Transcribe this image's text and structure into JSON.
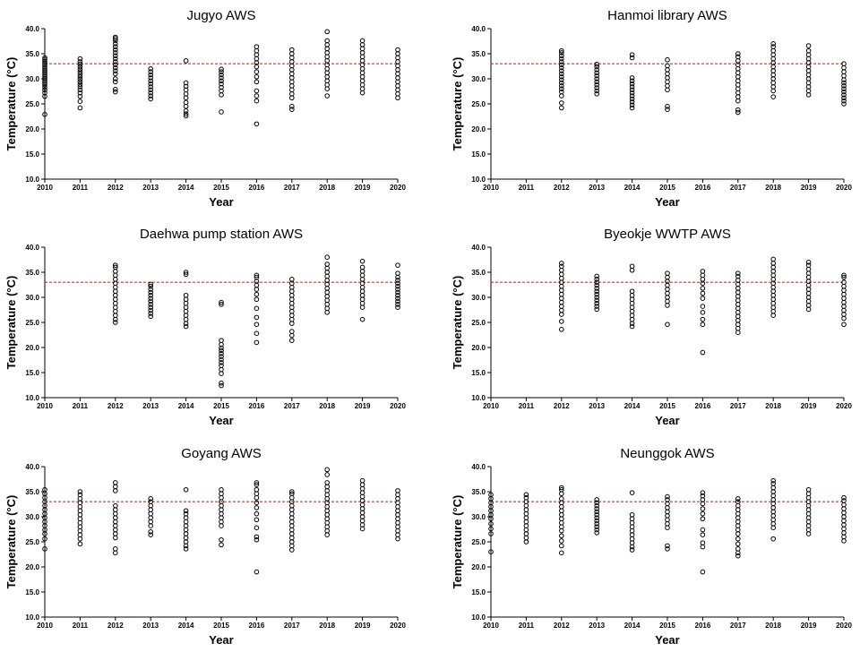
{
  "figure": {
    "threshold": 33,
    "threshold_color": "#c0392b",
    "marker_color": "#000000"
  },
  "chart_data": [
    {
      "type": "scatter",
      "title": "Jugyo AWS",
      "xlabel": "Year",
      "ylabel": "Temperature (°C)",
      "x_ticks": [
        "2010",
        "2011",
        "2012",
        "2013",
        "2014",
        "2015",
        "2016",
        "2017",
        "2018",
        "2019",
        "2020"
      ],
      "y_ticks": [
        "10.0",
        "15.0",
        "20.0",
        "25.0",
        "30.0",
        "35.0",
        "40.0"
      ],
      "xlim": [
        2010,
        2020
      ],
      "ylim": [
        10,
        40
      ],
      "reference_line": 33,
      "points": {
        "2010": [
          22.9,
          26.5,
          27.2,
          27.8,
          28.3,
          28.8,
          29.2,
          29.6,
          30.0,
          30.4,
          30.8,
          31.2,
          31.6,
          32.0,
          32.4,
          32.8,
          33.1,
          33.5,
          33.9,
          34.2
        ],
        "2011": [
          24.2,
          25.5,
          26.5,
          27.2,
          27.8,
          28.4,
          28.9,
          29.4,
          29.9,
          30.4,
          30.9,
          31.4,
          31.9,
          32.4,
          32.9,
          33.4,
          34.0
        ],
        "2012": [
          27.4,
          27.9,
          29.4,
          30.0,
          31.0,
          31.6,
          32.2,
          32.8,
          33.4,
          34.0,
          34.6,
          35.2,
          35.8,
          36.4,
          37.0,
          37.6,
          38.0,
          38.3
        ],
        "2013": [
          26.0,
          26.6,
          27.2,
          27.8,
          28.4,
          29.0,
          29.6,
          30.2,
          30.8,
          31.4,
          32.0
        ],
        "2014": [
          22.6,
          23.0,
          23.6,
          24.5,
          25.3,
          26.2,
          27.0,
          27.8,
          28.5,
          29.2,
          33.6
        ],
        "2015": [
          23.4,
          26.8,
          27.6,
          28.3,
          29.0,
          29.6,
          30.2,
          30.8,
          31.4,
          31.9
        ],
        "2016": [
          21.0,
          25.6,
          26.6,
          27.6,
          29.4,
          30.4,
          31.4,
          32.4,
          33.2,
          34.0,
          34.8,
          35.6,
          36.4
        ],
        "2017": [
          23.9,
          24.5,
          26.2,
          27.0,
          27.8,
          28.6,
          29.4,
          30.2,
          31.0,
          31.8,
          32.6,
          33.4,
          34.2,
          35.0,
          35.8
        ],
        "2018": [
          26.6,
          28.0,
          28.8,
          29.6,
          30.4,
          31.2,
          32.0,
          32.8,
          33.6,
          34.4,
          35.2,
          36.0,
          36.8,
          37.6,
          39.4
        ],
        "2019": [
          27.2,
          28.0,
          28.8,
          29.6,
          30.4,
          31.2,
          32.0,
          32.8,
          33.6,
          34.4,
          35.2,
          36.0,
          36.8,
          37.6
        ],
        "2020": [
          26.2,
          27.0,
          27.8,
          28.6,
          29.4,
          30.2,
          31.0,
          31.8,
          32.6,
          33.4,
          34.2,
          35.0,
          35.8
        ]
      }
    },
    {
      "type": "scatter",
      "title": "Hanmoi library AWS",
      "xlabel": "Year",
      "ylabel": "Temperature (°C)",
      "x_ticks": [
        "2010",
        "2011",
        "2012",
        "2013",
        "2014",
        "2015",
        "2016",
        "2017",
        "2018",
        "2019",
        "2020"
      ],
      "y_ticks": [
        "10.0",
        "15.0",
        "20.0",
        "25.0",
        "30.0",
        "35.0",
        "40.0"
      ],
      "xlim": [
        2010,
        2020
      ],
      "ylim": [
        10,
        40
      ],
      "reference_line": 33,
      "points": {
        "2012": [
          24.2,
          25.2,
          26.6,
          27.4,
          28.0,
          28.6,
          29.2,
          29.8,
          30.4,
          31.0,
          31.6,
          32.2,
          32.8,
          33.4,
          34.0,
          34.6,
          35.2,
          35.6
        ],
        "2013": [
          27.0,
          27.6,
          28.2,
          28.8,
          29.4,
          30.0,
          30.6,
          31.2,
          31.8,
          32.4,
          32.9
        ],
        "2014": [
          24.2,
          24.8,
          25.4,
          26.0,
          26.6,
          27.2,
          27.8,
          28.4,
          29.0,
          29.6,
          30.2,
          34.2,
          34.8
        ],
        "2015": [
          23.9,
          24.5,
          27.8,
          28.6,
          29.4,
          30.2,
          31.0,
          31.8,
          32.6,
          33.8
        ],
        "2017": [
          23.3,
          23.8,
          25.6,
          26.4,
          27.2,
          28.0,
          28.8,
          29.6,
          30.4,
          31.2,
          32.0,
          32.8,
          33.6,
          34.4,
          35.0
        ],
        "2018": [
          26.4,
          27.6,
          28.4,
          29.2,
          30.0,
          30.8,
          31.6,
          32.4,
          33.2,
          34.0,
          34.8,
          35.6,
          36.4,
          37.0
        ],
        "2019": [
          26.8,
          27.6,
          28.4,
          29.2,
          30.0,
          30.8,
          31.6,
          32.4,
          33.2,
          34.0,
          34.8,
          35.6,
          36.6
        ],
        "2020": [
          25.0,
          25.6,
          26.2,
          26.8,
          27.4,
          28.0,
          28.6,
          29.2,
          29.8,
          30.6,
          31.4,
          32.2,
          33.0
        ]
      }
    },
    {
      "type": "scatter",
      "title": "Daehwa pump station AWS",
      "xlabel": "Year",
      "ylabel": "Temperature (°C)",
      "x_ticks": [
        "2010",
        "2011",
        "2012",
        "2013",
        "2014",
        "2015",
        "2016",
        "2017",
        "2018",
        "2019",
        "2020"
      ],
      "y_ticks": [
        "10.0",
        "15.0",
        "20.0",
        "25.0",
        "30.0",
        "35.0",
        "40.0"
      ],
      "xlim": [
        2010,
        2020
      ],
      "ylim": [
        10,
        40
      ],
      "reference_line": 33,
      "points": {
        "2012": [
          25.0,
          25.6,
          26.4,
          27.2,
          28.0,
          28.8,
          29.6,
          30.4,
          31.2,
          32.0,
          32.8,
          33.6,
          34.4,
          35.2,
          36.0,
          36.4
        ],
        "2013": [
          26.2,
          26.8,
          27.4,
          28.0,
          28.6,
          29.2,
          29.8,
          30.4,
          31.0,
          31.6,
          32.2,
          32.6
        ],
        "2014": [
          24.2,
          24.8,
          25.6,
          26.4,
          27.2,
          28.0,
          28.8,
          29.6,
          30.4,
          34.6,
          35.0
        ],
        "2015": [
          12.4,
          12.9,
          14.8,
          15.6,
          16.4,
          17.0,
          17.6,
          18.2,
          18.8,
          19.4,
          19.9,
          20.6,
          21.4,
          28.6,
          29.0
        ],
        "2016": [
          21.0,
          22.8,
          24.6,
          26.0,
          27.8,
          29.6,
          30.6,
          31.6,
          32.4,
          33.2,
          34.0,
          34.4
        ],
        "2017": [
          21.4,
          22.4,
          23.2,
          24.8,
          25.6,
          26.4,
          27.2,
          28.0,
          28.8,
          29.6,
          30.4,
          31.2,
          32.0,
          32.8,
          33.6
        ],
        "2018": [
          27.0,
          27.8,
          28.6,
          29.4,
          30.2,
          31.0,
          31.8,
          32.6,
          33.4,
          34.2,
          35.0,
          35.8,
          36.6,
          38.0
        ],
        "2019": [
          25.6,
          28.0,
          28.8,
          29.6,
          30.4,
          31.2,
          32.0,
          32.8,
          33.6,
          34.4,
          35.2,
          36.0,
          37.2
        ],
        "2020": [
          28.0,
          28.6,
          29.2,
          29.8,
          30.4,
          31.0,
          31.6,
          32.2,
          32.8,
          33.4,
          34.0,
          34.8,
          36.4
        ]
      }
    },
    {
      "type": "scatter",
      "title": "Byeokje WWTP AWS",
      "xlabel": "Year",
      "ylabel": "Temperature (°C)",
      "x_ticks": [
        "2010",
        "2011",
        "2012",
        "2013",
        "2014",
        "2015",
        "2016",
        "2017",
        "2018",
        "2019",
        "2020"
      ],
      "y_ticks": [
        "10.0",
        "15.0",
        "20.0",
        "25.0",
        "30.0",
        "35.0",
        "40.0"
      ],
      "xlim": [
        2010,
        2020
      ],
      "ylim": [
        10,
        40
      ],
      "reference_line": 33,
      "points": {
        "2012": [
          23.6,
          25.2,
          26.6,
          27.4,
          28.2,
          29.0,
          29.8,
          30.6,
          31.4,
          32.2,
          33.0,
          33.8,
          34.6,
          35.4,
          36.2,
          36.8
        ],
        "2013": [
          27.6,
          28.2,
          28.8,
          29.4,
          30.0,
          30.6,
          31.2,
          31.8,
          32.4,
          33.0,
          33.6,
          34.2
        ],
        "2014": [
          24.2,
          24.8,
          25.6,
          26.4,
          27.2,
          28.0,
          28.8,
          29.6,
          30.4,
          31.2,
          35.4,
          36.2
        ],
        "2015": [
          24.6,
          28.4,
          29.2,
          30.0,
          30.8,
          31.6,
          32.4,
          33.2,
          34.0,
          34.8
        ],
        "2016": [
          19.0,
          24.6,
          25.6,
          27.0,
          28.2,
          29.8,
          30.8,
          31.8,
          32.8,
          33.6,
          34.4,
          35.2
        ],
        "2017": [
          23.0,
          23.8,
          24.6,
          25.4,
          26.2,
          27.0,
          27.8,
          28.6,
          29.4,
          30.2,
          31.0,
          31.8,
          32.6,
          33.4,
          34.2,
          34.8
        ],
        "2018": [
          26.4,
          27.2,
          28.0,
          28.8,
          29.6,
          30.4,
          31.2,
          32.0,
          32.8,
          33.6,
          34.4,
          35.2,
          36.0,
          36.8,
          37.6
        ],
        "2019": [
          27.6,
          28.4,
          29.2,
          30.0,
          30.8,
          31.6,
          32.4,
          33.2,
          34.0,
          34.8,
          35.6,
          36.4,
          37.0
        ],
        "2020": [
          24.6,
          25.8,
          26.6,
          27.4,
          28.2,
          29.0,
          29.8,
          30.6,
          31.4,
          32.2,
          33.0,
          34.0,
          34.4
        ]
      }
    },
    {
      "type": "scatter",
      "title": "Goyang AWS",
      "xlabel": "Year",
      "ylabel": "Temperature (°C)",
      "x_ticks": [
        "2010",
        "2011",
        "2012",
        "2013",
        "2014",
        "2015",
        "2016",
        "2017",
        "2018",
        "2019",
        "2020"
      ],
      "y_ticks": [
        "10.0",
        "15.0",
        "20.0",
        "25.0",
        "30.0",
        "35.0",
        "40.0"
      ],
      "xlim": [
        2010,
        2020
      ],
      "ylim": [
        10,
        40
      ],
      "reference_line": 33,
      "points": {
        "2010": [
          23.6,
          25.6,
          26.6,
          27.4,
          28.2,
          29.0,
          29.8,
          30.6,
          31.4,
          32.2,
          33.0,
          33.8,
          34.6,
          35.4
        ],
        "2011": [
          24.6,
          25.6,
          26.4,
          27.2,
          28.0,
          28.8,
          29.6,
          30.4,
          31.2,
          32.0,
          32.8,
          33.6,
          34.4,
          35.0
        ],
        "2012": [
          22.8,
          23.6,
          25.8,
          26.6,
          27.4,
          28.2,
          29.0,
          29.8,
          30.6,
          31.4,
          32.2,
          35.2,
          36.0,
          36.8
        ],
        "2013": [
          26.4,
          27.0,
          28.2,
          29.0,
          29.8,
          30.6,
          31.4,
          32.2,
          33.0,
          33.6
        ],
        "2014": [
          23.6,
          24.2,
          25.0,
          25.8,
          26.6,
          27.4,
          28.2,
          29.0,
          29.8,
          30.6,
          31.2,
          35.4
        ],
        "2015": [
          24.4,
          25.4,
          28.2,
          29.0,
          29.8,
          30.6,
          31.4,
          32.2,
          33.0,
          33.8,
          34.6,
          35.4
        ],
        "2016": [
          19.0,
          25.4,
          26.0,
          27.8,
          29.4,
          30.6,
          31.8,
          32.8,
          33.8,
          34.6,
          35.4,
          36.4,
          36.8
        ],
        "2017": [
          23.4,
          24.2,
          25.0,
          25.8,
          26.6,
          27.4,
          28.2,
          29.0,
          29.8,
          30.6,
          31.4,
          32.2,
          33.0,
          33.8,
          34.6,
          35.0
        ],
        "2018": [
          26.4,
          27.2,
          28.0,
          28.8,
          29.6,
          30.4,
          31.2,
          32.0,
          32.8,
          33.6,
          34.4,
          35.2,
          36.0,
          36.8,
          38.4,
          39.4
        ],
        "2019": [
          27.6,
          28.4,
          29.2,
          30.0,
          30.8,
          31.6,
          32.4,
          33.2,
          34.0,
          34.8,
          35.6,
          36.4,
          37.2
        ],
        "2020": [
          25.6,
          26.4,
          27.2,
          28.0,
          28.8,
          29.6,
          30.4,
          31.2,
          32.0,
          32.8,
          33.6,
          34.4,
          35.2
        ]
      }
    },
    {
      "type": "scatter",
      "title": "Neunggok AWS",
      "xlabel": "Year",
      "ylabel": "Temperature (°C)",
      "x_ticks": [
        "2010",
        "2011",
        "2012",
        "2013",
        "2014",
        "2015",
        "2016",
        "2017",
        "2018",
        "2019",
        "2020"
      ],
      "y_ticks": [
        "10.0",
        "15.0",
        "20.0",
        "25.0",
        "30.0",
        "35.0",
        "40.0"
      ],
      "xlim": [
        2010,
        2020
      ],
      "ylim": [
        10,
        40
      ],
      "reference_line": 33,
      "points": {
        "2010": [
          23.0,
          26.6,
          27.6,
          28.6,
          29.6,
          30.4,
          31.2,
          32.0,
          32.8,
          33.6,
          34.4
        ],
        "2011": [
          25.0,
          25.8,
          26.6,
          27.4,
          28.2,
          29.0,
          29.8,
          30.6,
          31.4,
          32.2,
          33.0,
          33.8,
          34.4
        ],
        "2012": [
          22.8,
          24.2,
          25.2,
          26.2,
          27.2,
          28.0,
          28.8,
          29.6,
          30.4,
          31.2,
          32.0,
          32.8,
          33.6,
          34.6,
          35.4,
          35.8
        ],
        "2013": [
          26.8,
          27.4,
          28.0,
          28.6,
          29.2,
          29.8,
          30.4,
          31.0,
          31.6,
          32.2,
          32.8,
          33.4
        ],
        "2014": [
          23.4,
          24.0,
          24.8,
          25.6,
          26.4,
          27.2,
          28.0,
          28.8,
          29.6,
          30.4,
          34.8
        ],
        "2015": [
          23.6,
          24.2,
          27.8,
          28.6,
          29.4,
          30.2,
          31.0,
          31.8,
          32.6,
          33.4,
          34.0
        ],
        "2016": [
          19.0,
          24.0,
          24.8,
          26.4,
          27.4,
          29.6,
          30.6,
          31.6,
          32.6,
          33.4,
          34.2,
          34.8
        ],
        "2017": [
          22.2,
          22.8,
          23.6,
          24.6,
          25.6,
          26.6,
          27.4,
          28.2,
          29.0,
          29.8,
          30.6,
          31.4,
          32.2,
          33.0,
          33.6
        ],
        "2018": [
          25.6,
          27.8,
          28.6,
          29.4,
          30.2,
          31.0,
          31.8,
          32.6,
          33.4,
          34.2,
          35.0,
          35.8,
          36.6,
          37.2
        ],
        "2019": [
          26.6,
          27.4,
          28.2,
          29.0,
          29.8,
          30.6,
          31.4,
          32.2,
          33.0,
          33.8,
          34.6,
          35.4
        ],
        "2020": [
          25.2,
          26.0,
          26.8,
          27.6,
          28.4,
          29.2,
          30.0,
          30.8,
          31.6,
          32.4,
          33.2,
          33.8
        ]
      }
    }
  ]
}
